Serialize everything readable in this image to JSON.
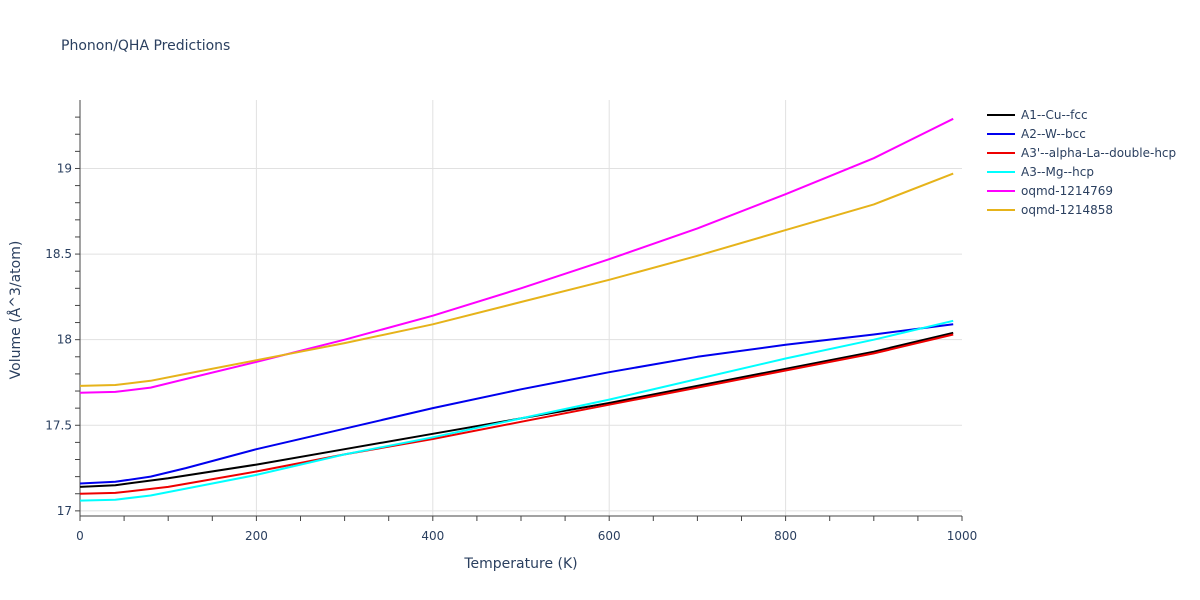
{
  "chart_data": {
    "type": "line",
    "title": "Phonon/QHA Predictions",
    "xlabel": "Temperature (K)",
    "ylabel": "Volume (Å^3/atom)",
    "xlim": [
      0,
      1000
    ],
    "ylim": [
      16.97,
      19.4
    ],
    "xticks": [
      0,
      200,
      400,
      600,
      800,
      1000
    ],
    "yticks": [
      17,
      17.5,
      18,
      18.5,
      19
    ],
    "grid": true,
    "legend": "right",
    "series": [
      {
        "name": "A1--Cu--fcc",
        "color": "#000000",
        "x": [
          0,
          40,
          100,
          200,
          300,
          400,
          500,
          600,
          700,
          800,
          900,
          990
        ],
        "y": [
          17.14,
          17.15,
          17.19,
          17.27,
          17.36,
          17.45,
          17.54,
          17.63,
          17.73,
          17.83,
          17.93,
          18.04
        ]
      },
      {
        "name": "A2--W--bcc",
        "color": "#0000ee",
        "x": [
          0,
          40,
          80,
          120,
          200,
          300,
          400,
          500,
          600,
          700,
          800,
          900,
          990
        ],
        "y": [
          17.16,
          17.17,
          17.2,
          17.25,
          17.36,
          17.48,
          17.6,
          17.71,
          17.81,
          17.9,
          17.97,
          18.03,
          18.09
        ]
      },
      {
        "name": "A3'--alpha-La--double-hcp",
        "color": "#ee0000",
        "x": [
          0,
          40,
          100,
          200,
          300,
          400,
          500,
          600,
          700,
          800,
          900,
          990
        ],
        "y": [
          17.1,
          17.105,
          17.14,
          17.23,
          17.33,
          17.42,
          17.52,
          17.62,
          17.72,
          17.82,
          17.92,
          18.03
        ]
      },
      {
        "name": "A3--Mg--hcp",
        "color": "#00ffff",
        "x": [
          0,
          40,
          80,
          150,
          200,
          300,
          400,
          500,
          600,
          700,
          800,
          900,
          990
        ],
        "y": [
          17.06,
          17.065,
          17.09,
          17.16,
          17.21,
          17.33,
          17.43,
          17.54,
          17.65,
          17.77,
          17.89,
          18.0,
          18.11
        ]
      },
      {
        "name": "oqmd-1214769",
        "color": "#ff00ff",
        "x": [
          0,
          40,
          80,
          120,
          200,
          300,
          400,
          500,
          600,
          700,
          800,
          900,
          990
        ],
        "y": [
          17.69,
          17.695,
          17.72,
          17.77,
          17.87,
          18.0,
          18.14,
          18.3,
          18.47,
          18.65,
          18.85,
          19.06,
          19.29
        ]
      },
      {
        "name": "oqmd-1214858",
        "color": "#e6b31a",
        "x": [
          0,
          40,
          80,
          120,
          200,
          300,
          400,
          500,
          600,
          700,
          800,
          900,
          990
        ],
        "y": [
          17.73,
          17.735,
          17.76,
          17.8,
          17.88,
          17.98,
          18.09,
          18.22,
          18.35,
          18.49,
          18.64,
          18.79,
          18.97
        ]
      }
    ]
  }
}
